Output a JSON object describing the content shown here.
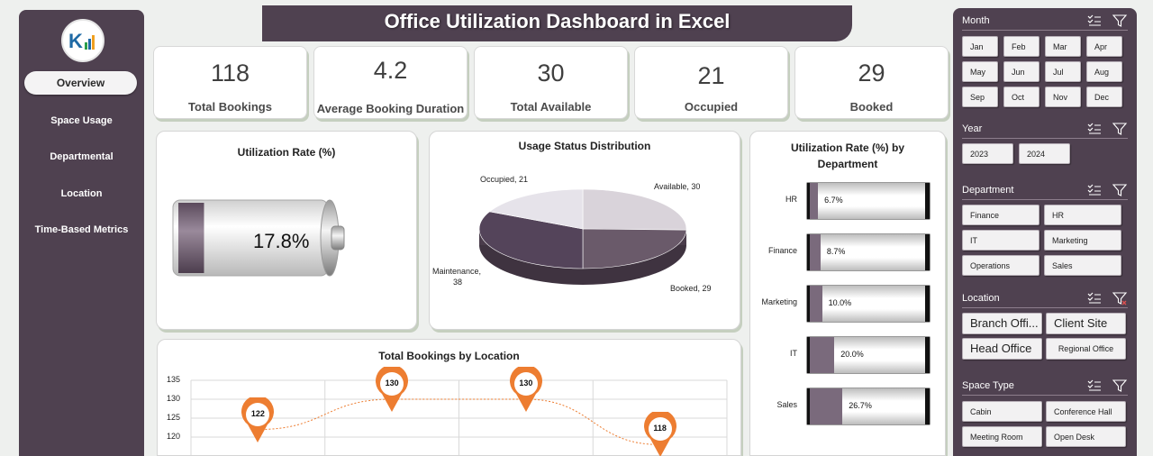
{
  "title": "Office Utilization Dashboard in Excel",
  "nav": {
    "items": [
      "Overview",
      "Space Usage",
      "Departmental",
      "Location",
      "Time-Based Metrics"
    ]
  },
  "kpis": [
    {
      "value": "118",
      "label": "Total Bookings"
    },
    {
      "value": "4.2",
      "label": "Average Booking Duration"
    },
    {
      "value": "30",
      "label": "Total Available"
    },
    {
      "value": "21",
      "label": "Occupied"
    },
    {
      "value": "29",
      "label": "Booked"
    }
  ],
  "utilization": {
    "title": "Utilization Rate (%)",
    "value": "17.8%",
    "fraction": 0.178
  },
  "usage_status": {
    "title": "Usage Status Distribution",
    "labels": {
      "occupied": "Occupied, 21",
      "available": "Available, 30",
      "maintenance_a": "Maintenance,",
      "maintenance_b": "38",
      "booked": "Booked, 29"
    }
  },
  "dept": {
    "title_a": "Utilization Rate (%) by",
    "title_b": "Department",
    "rows": [
      {
        "name": "HR",
        "label": "6.7%"
      },
      {
        "name": "Finance",
        "label": "8.7%"
      },
      {
        "name": "Marketing",
        "label": "10.0%"
      },
      {
        "name": "IT",
        "label": "20.0%"
      },
      {
        "name": "Sales",
        "label": "26.7%"
      }
    ]
  },
  "location": {
    "title": "Total Bookings by Location",
    "yticks": [
      "135",
      "130",
      "125",
      "120"
    ],
    "pins": [
      "122",
      "130",
      "130",
      "118"
    ]
  },
  "filters": {
    "month": {
      "title": "Month",
      "items": [
        "Jan",
        "Feb",
        "Mar",
        "Apr",
        "May",
        "Jun",
        "Jul",
        "Aug",
        "Sep",
        "Oct",
        "Nov",
        "Dec"
      ]
    },
    "year": {
      "title": "Year",
      "items": [
        "2023",
        "2024"
      ]
    },
    "department": {
      "title": "Department",
      "items": [
        "Finance",
        "HR",
        "IT",
        "Marketing",
        "Operations",
        "Sales"
      ]
    },
    "location": {
      "title": "Location",
      "items": [
        "Branch Offi...",
        "Client Site",
        "Head Office",
        "Regional Office"
      ]
    },
    "space_type": {
      "title": "Space Type",
      "items": [
        "Cabin",
        "Conference Hall",
        "Meeting Room",
        "Open Desk"
      ]
    }
  },
  "chart_data": [
    {
      "type": "bar",
      "title": "Utilization Rate (%)",
      "categories": [
        ""
      ],
      "values": [
        17.8
      ],
      "ylim": [
        0,
        100
      ]
    },
    {
      "type": "pie",
      "title": "Usage Status Distribution",
      "categories": [
        "Occupied",
        "Available",
        "Booked",
        "Maintenance"
      ],
      "values": [
        21,
        30,
        29,
        38
      ],
      "colors": [
        "#e6e3ea",
        "#d9d3da",
        "#6a5a6a",
        "#54445a"
      ]
    },
    {
      "type": "bar",
      "title": "Utilization Rate (%) by Department",
      "categories": [
        "HR",
        "Finance",
        "Marketing",
        "IT",
        "Sales"
      ],
      "values": [
        6.7,
        8.7,
        10.0,
        20.0,
        26.7
      ],
      "ylim": [
        0,
        100
      ]
    },
    {
      "type": "line",
      "title": "Total Bookings by Location",
      "categories": [
        "",
        "",
        "",
        ""
      ],
      "values": [
        122,
        130,
        130,
        118
      ],
      "ylim": [
        120,
        135
      ]
    }
  ],
  "colors": {
    "accent": "#4f4150",
    "pin": "#ed7d31",
    "bar_fill": "#7a6a7c"
  }
}
